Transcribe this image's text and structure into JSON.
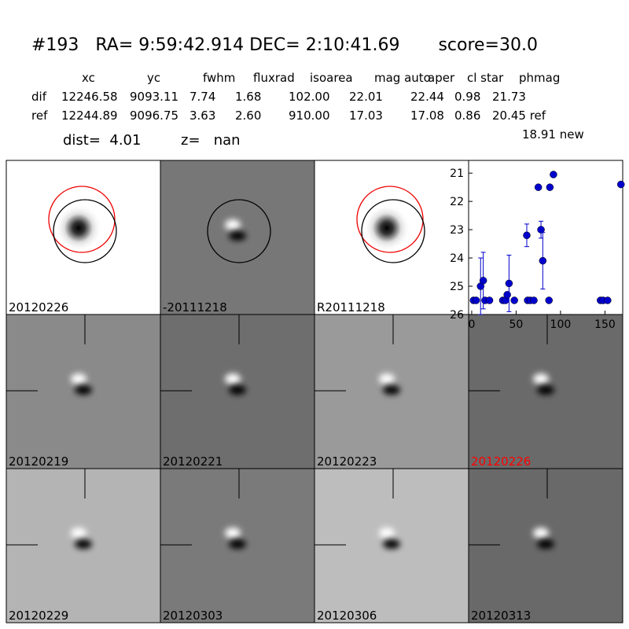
{
  "header": {
    "title": "#193   RA= 9:59:42.914 DEC= 2:10:41.69       score=30.0",
    "dist": "dist=  4.01",
    "z": "z=   nan"
  },
  "table": {
    "columns": [
      "xc",
      "yc",
      "fwhm",
      "fluxrad",
      "isoarea",
      "mag auto",
      "aper",
      "cl star",
      "phmag"
    ],
    "rows": [
      {
        "name": "dif",
        "values": [
          "12246.58",
          "9093.11",
          "7.74",
          "1.68",
          "102.00",
          "22.01",
          "22.44",
          "0.98",
          "21.73"
        ]
      },
      {
        "name": "ref",
        "values": [
          "12244.89",
          "9096.75",
          "3.63",
          "2.60",
          "910.00",
          "17.03",
          "17.08",
          "0.86",
          "20.45 ref"
        ]
      }
    ],
    "extra": "18.91 new"
  },
  "panels": [
    {
      "label": "20120226",
      "color": "#000000"
    },
    {
      "label": "-20111218",
      "color": "#000000"
    },
    {
      "label": "R20111218",
      "color": "#000000"
    },
    {
      "label": "20120219",
      "color": "#000000"
    },
    {
      "label": "20120221",
      "color": "#000000"
    },
    {
      "label": "20120223",
      "color": "#000000"
    },
    {
      "label": "20120226",
      "color": "#ff0000"
    },
    {
      "label": "20120229",
      "color": "#000000"
    },
    {
      "label": "20120303",
      "color": "#000000"
    },
    {
      "label": "20120306",
      "color": "#000000"
    },
    {
      "label": "20120313",
      "color": "#000000"
    }
  ],
  "chart_data": {
    "type": "scatter",
    "color": "#0000cc",
    "x": [
      2,
      5,
      10,
      13,
      15,
      20,
      35,
      38,
      40,
      42,
      48,
      62,
      63,
      66,
      70,
      75,
      78,
      80,
      87,
      88,
      92,
      145,
      148,
      153,
      168
    ],
    "values": [
      25.5,
      25.5,
      25.0,
      24.8,
      25.5,
      25.5,
      25.5,
      25.5,
      25.3,
      24.9,
      25.5,
      23.2,
      25.5,
      25.5,
      25.5,
      21.5,
      23.0,
      24.1,
      25.5,
      21.5,
      21.05,
      25.5,
      25.5,
      25.5,
      21.4
    ],
    "errors": [
      null,
      null,
      1.0,
      1.0,
      null,
      null,
      null,
      null,
      null,
      1.0,
      null,
      0.4,
      null,
      null,
      null,
      null,
      0.3,
      1.0,
      null,
      null,
      null,
      null,
      null,
      null,
      null
    ],
    "xlim": [
      -3.5,
      170
    ],
    "ylim": [
      26,
      20.55
    ],
    "xticks": [
      0,
      50,
      100,
      150
    ],
    "yticks": [
      21,
      22,
      23,
      24,
      25,
      26
    ]
  }
}
